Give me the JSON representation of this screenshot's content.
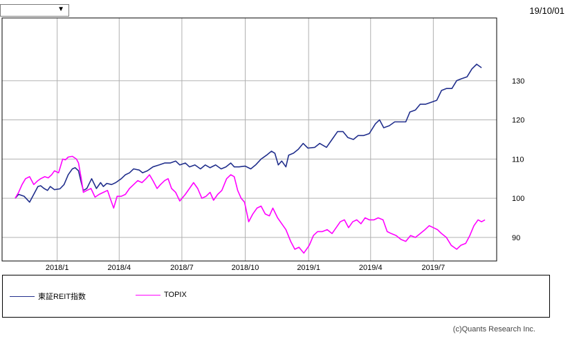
{
  "header": {
    "dropdown_value": "",
    "dropdown_arrow": "▼",
    "date": "19/10/01"
  },
  "credit": "(c)Quants Research Inc.",
  "colors": {
    "reit": "#202e8c",
    "topix": "#ff00ff",
    "grid": "#b0b0b0"
  },
  "chart_data": {
    "type": "line",
    "title": "",
    "xlabel": "",
    "ylabel": "",
    "x_range": [
      "2017/10/13",
      "2019/10/01"
    ],
    "ylim": [
      84,
      146
    ],
    "grid": true,
    "legend_position": "bottom",
    "x_ticks": [
      {
        "label": "2018/1",
        "date": "2018-01-01"
      },
      {
        "label": "2018/4",
        "date": "2018-04-01"
      },
      {
        "label": "2018/7",
        "date": "2018-07-01"
      },
      {
        "label": "2018/10",
        "date": "2018-10-01"
      },
      {
        "label": "2019/1",
        "date": "2019-01-01"
      },
      {
        "label": "2019/4",
        "date": "2019-04-01"
      },
      {
        "label": "2019/7",
        "date": "2019-07-01"
      }
    ],
    "y_ticks": [
      90,
      100,
      110,
      120,
      130
    ],
    "series": [
      {
        "name": "東証REIT指数",
        "color": "#202e8c",
        "points": [
          [
            "2017-11-01",
            100
          ],
          [
            "2017-11-06",
            101
          ],
          [
            "2017-11-14",
            100.5
          ],
          [
            "2017-11-22",
            99
          ],
          [
            "2017-11-28",
            101
          ],
          [
            "2017-12-04",
            103
          ],
          [
            "2017-12-08",
            103.2
          ],
          [
            "2017-12-13",
            102.5
          ],
          [
            "2017-12-18",
            102
          ],
          [
            "2017-12-22",
            103
          ],
          [
            "2017-12-28",
            102.2
          ],
          [
            "2018-01-05",
            102.4
          ],
          [
            "2018-01-11",
            103.5
          ],
          [
            "2018-01-17",
            106
          ],
          [
            "2018-01-23",
            107.5
          ],
          [
            "2018-01-27",
            107.8
          ],
          [
            "2018-02-01",
            107
          ],
          [
            "2018-02-05",
            104
          ],
          [
            "2018-02-08",
            102
          ],
          [
            "2018-02-13",
            102.5
          ],
          [
            "2018-02-20",
            105
          ],
          [
            "2018-02-27",
            102.5
          ],
          [
            "2018-03-05",
            104
          ],
          [
            "2018-03-09",
            103
          ],
          [
            "2018-03-14",
            103.8
          ],
          [
            "2018-03-21",
            103.5
          ],
          [
            "2018-03-27",
            104
          ],
          [
            "2018-04-04",
            105
          ],
          [
            "2018-04-10",
            106
          ],
          [
            "2018-04-16",
            106.5
          ],
          [
            "2018-04-22",
            107.5
          ],
          [
            "2018-04-30",
            107.2
          ],
          [
            "2018-05-05",
            106.5
          ],
          [
            "2018-05-12",
            107
          ],
          [
            "2018-05-20",
            108
          ],
          [
            "2018-05-29",
            108.5
          ],
          [
            "2018-06-06",
            109
          ],
          [
            "2018-06-14",
            109
          ],
          [
            "2018-06-22",
            109.5
          ],
          [
            "2018-06-28",
            108.5
          ],
          [
            "2018-07-06",
            109
          ],
          [
            "2018-07-12",
            108
          ],
          [
            "2018-07-20",
            108.5
          ],
          [
            "2018-07-28",
            107.5
          ],
          [
            "2018-08-04",
            108.5
          ],
          [
            "2018-08-11",
            107.8
          ],
          [
            "2018-08-19",
            108.5
          ],
          [
            "2018-08-27",
            107.5
          ],
          [
            "2018-09-03",
            108
          ],
          [
            "2018-09-10",
            109
          ],
          [
            "2018-09-15",
            108
          ],
          [
            "2018-09-22",
            108
          ],
          [
            "2018-10-01",
            108.2
          ],
          [
            "2018-10-09",
            107.5
          ],
          [
            "2018-10-16",
            108.5
          ],
          [
            "2018-10-24",
            110
          ],
          [
            "2018-11-01",
            111
          ],
          [
            "2018-11-08",
            112
          ],
          [
            "2018-11-13",
            111.5
          ],
          [
            "2018-11-18",
            108.5
          ],
          [
            "2018-11-23",
            109.5
          ],
          [
            "2018-11-29",
            108
          ],
          [
            "2018-12-03",
            111
          ],
          [
            "2018-12-10",
            111.5
          ],
          [
            "2018-12-17",
            112.5
          ],
          [
            "2018-12-24",
            114
          ],
          [
            "2018-12-31",
            112.8
          ],
          [
            "2019-01-10",
            113
          ],
          [
            "2019-01-17",
            114
          ],
          [
            "2019-01-27",
            113
          ],
          [
            "2019-02-04",
            115
          ],
          [
            "2019-02-12",
            117
          ],
          [
            "2019-02-20",
            117
          ],
          [
            "2019-02-27",
            115.5
          ],
          [
            "2019-03-07",
            115
          ],
          [
            "2019-03-14",
            116
          ],
          [
            "2019-03-22",
            116
          ],
          [
            "2019-03-30",
            116.5
          ],
          [
            "2019-04-08",
            119
          ],
          [
            "2019-04-14",
            120
          ],
          [
            "2019-04-20",
            118
          ],
          [
            "2019-04-28",
            118.5
          ],
          [
            "2019-05-06",
            119.5
          ],
          [
            "2019-05-14",
            119.5
          ],
          [
            "2019-05-22",
            119.5
          ],
          [
            "2019-05-28",
            122
          ],
          [
            "2019-06-05",
            122.5
          ],
          [
            "2019-06-12",
            124
          ],
          [
            "2019-06-20",
            124
          ],
          [
            "2019-06-28",
            124.5
          ],
          [
            "2019-07-06",
            125
          ],
          [
            "2019-07-13",
            127.5
          ],
          [
            "2019-07-20",
            128
          ],
          [
            "2019-07-28",
            128
          ],
          [
            "2019-08-04",
            130
          ],
          [
            "2019-08-11",
            130.5
          ],
          [
            "2019-08-19",
            131
          ],
          [
            "2019-08-26",
            133
          ],
          [
            "2019-09-02",
            134.2
          ],
          [
            "2019-09-09",
            133.3
          ]
        ]
      },
      {
        "name": "TOPIX",
        "color": "#ff00ff",
        "points": [
          [
            "2017-11-01",
            100
          ],
          [
            "2017-11-06",
            101.5
          ],
          [
            "2017-11-11",
            103.5
          ],
          [
            "2017-11-16",
            105
          ],
          [
            "2017-11-22",
            105.5
          ],
          [
            "2017-11-28",
            103.5
          ],
          [
            "2017-12-04",
            104.5
          ],
          [
            "2017-12-08",
            105
          ],
          [
            "2017-12-14",
            105.5
          ],
          [
            "2017-12-19",
            105.2
          ],
          [
            "2017-12-24",
            106
          ],
          [
            "2017-12-28",
            107
          ],
          [
            "2018-01-03",
            106.5
          ],
          [
            "2018-01-09",
            110
          ],
          [
            "2018-01-13",
            109.8
          ],
          [
            "2018-01-17",
            110.5
          ],
          [
            "2018-01-23",
            110.7
          ],
          [
            "2018-01-29",
            110
          ],
          [
            "2018-02-01",
            109
          ],
          [
            "2018-02-05",
            105
          ],
          [
            "2018-02-08",
            101.5
          ],
          [
            "2018-02-13",
            102
          ],
          [
            "2018-02-19",
            102.5
          ],
          [
            "2018-02-25",
            100.3
          ],
          [
            "2018-03-03",
            101
          ],
          [
            "2018-03-09",
            101.5
          ],
          [
            "2018-03-15",
            102
          ],
          [
            "2018-03-19",
            100
          ],
          [
            "2018-03-24",
            97.5
          ],
          [
            "2018-03-29",
            100.5
          ],
          [
            "2018-04-04",
            100.5
          ],
          [
            "2018-04-10",
            101
          ],
          [
            "2018-04-16",
            102.5
          ],
          [
            "2018-04-22",
            103.5
          ],
          [
            "2018-04-28",
            104.5
          ],
          [
            "2018-05-04",
            104
          ],
          [
            "2018-05-10",
            105
          ],
          [
            "2018-05-15",
            106
          ],
          [
            "2018-05-20",
            104.5
          ],
          [
            "2018-05-26",
            102.5
          ],
          [
            "2018-05-31",
            103.5
          ],
          [
            "2018-06-06",
            104.5
          ],
          [
            "2018-06-11",
            105
          ],
          [
            "2018-06-16",
            102.5
          ],
          [
            "2018-06-22",
            101.5
          ],
          [
            "2018-06-28",
            99.3
          ],
          [
            "2018-07-06",
            101
          ],
          [
            "2018-07-12",
            102.5
          ],
          [
            "2018-07-18",
            104
          ],
          [
            "2018-07-24",
            102.5
          ],
          [
            "2018-07-30",
            100
          ],
          [
            "2018-08-05",
            100.5
          ],
          [
            "2018-08-11",
            101.5
          ],
          [
            "2018-08-16",
            99.5
          ],
          [
            "2018-08-22",
            101
          ],
          [
            "2018-08-28",
            102
          ],
          [
            "2018-09-04",
            105
          ],
          [
            "2018-09-10",
            106
          ],
          [
            "2018-09-15",
            105.5
          ],
          [
            "2018-09-20",
            102
          ],
          [
            "2018-09-25",
            100
          ],
          [
            "2018-09-30",
            99
          ],
          [
            "2018-10-06",
            94
          ],
          [
            "2018-10-12",
            96
          ],
          [
            "2018-10-18",
            97.5
          ],
          [
            "2018-10-24",
            98
          ],
          [
            "2018-10-30",
            96
          ],
          [
            "2018-11-05",
            95.5
          ],
          [
            "2018-11-10",
            97.5
          ],
          [
            "2018-11-17",
            95
          ],
          [
            "2018-11-23",
            93.5
          ],
          [
            "2018-11-29",
            92
          ],
          [
            "2018-12-06",
            89
          ],
          [
            "2018-12-12",
            87
          ],
          [
            "2018-12-18",
            87.5
          ],
          [
            "2018-12-25",
            86
          ],
          [
            "2019-01-02",
            88
          ],
          [
            "2019-01-08",
            90.5
          ],
          [
            "2019-01-14",
            91.5
          ],
          [
            "2019-01-21",
            91.5
          ],
          [
            "2019-01-28",
            92
          ],
          [
            "2019-02-04",
            91
          ],
          [
            "2019-02-10",
            92.5
          ],
          [
            "2019-02-16",
            94
          ],
          [
            "2019-02-22",
            94.5
          ],
          [
            "2019-02-28",
            92.5
          ],
          [
            "2019-03-06",
            94
          ],
          [
            "2019-03-12",
            94.5
          ],
          [
            "2019-03-18",
            93.5
          ],
          [
            "2019-03-24",
            95
          ],
          [
            "2019-03-30",
            94.5
          ],
          [
            "2019-04-06",
            94.5
          ],
          [
            "2019-04-12",
            95
          ],
          [
            "2019-04-19",
            94.5
          ],
          [
            "2019-04-25",
            91.5
          ],
          [
            "2019-05-01",
            91
          ],
          [
            "2019-05-08",
            90.5
          ],
          [
            "2019-05-15",
            89.5
          ],
          [
            "2019-05-22",
            89
          ],
          [
            "2019-05-29",
            90.5
          ],
          [
            "2019-06-05",
            90
          ],
          [
            "2019-06-12",
            91
          ],
          [
            "2019-06-19",
            92
          ],
          [
            "2019-06-25",
            93
          ],
          [
            "2019-07-01",
            92.5
          ],
          [
            "2019-07-07",
            92
          ],
          [
            "2019-07-13",
            91
          ],
          [
            "2019-07-20",
            90
          ],
          [
            "2019-07-27",
            88
          ],
          [
            "2019-08-04",
            87
          ],
          [
            "2019-08-10",
            88
          ],
          [
            "2019-08-17",
            88.5
          ],
          [
            "2019-08-23",
            90.5
          ],
          [
            "2019-08-29",
            93
          ],
          [
            "2019-09-04",
            94.5
          ],
          [
            "2019-09-09",
            94
          ],
          [
            "2019-09-14",
            94.5
          ]
        ]
      }
    ]
  }
}
